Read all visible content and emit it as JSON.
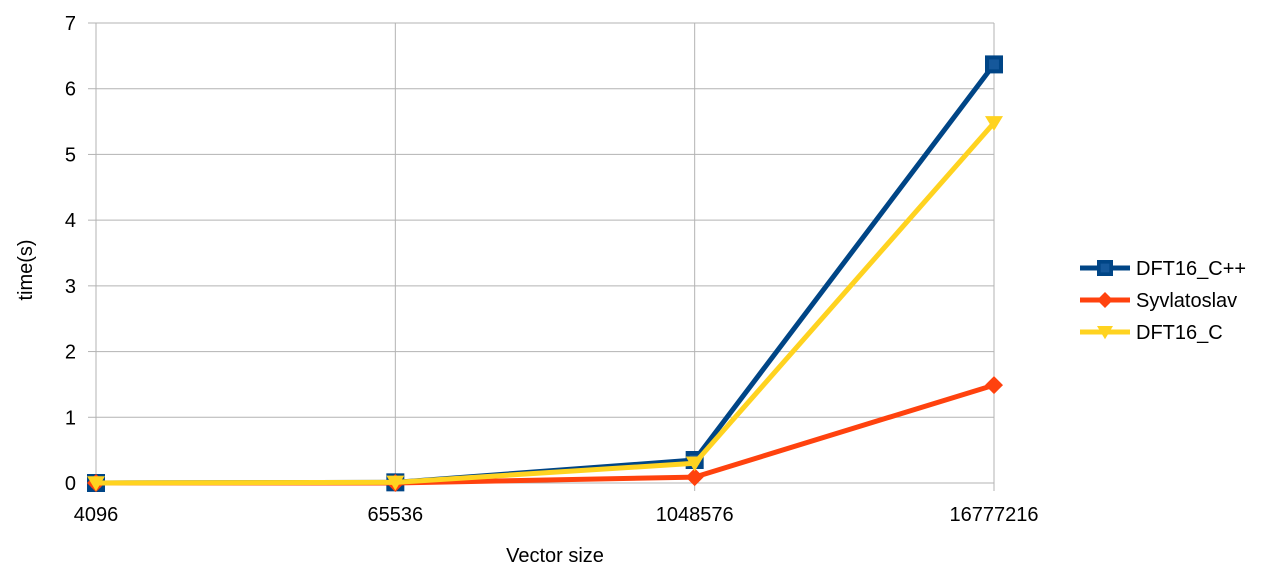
{
  "chart_data": {
    "type": "line",
    "title": "",
    "xlabel": "Vector size",
    "ylabel": "time(s)",
    "categories": [
      "4096",
      "65536",
      "1048576",
      "16777216"
    ],
    "ylim": [
      0,
      7
    ],
    "yticks": [
      "0",
      "1",
      "2",
      "3",
      "4",
      "5",
      "6",
      "7"
    ],
    "grid": "horizontal",
    "legend_position": "right",
    "series": [
      {
        "name": "DFT16_C++",
        "marker": "square",
        "color": "#004586",
        "values": [
          0.0,
          0.01,
          0.35,
          6.37
        ]
      },
      {
        "name": "Syvlatoslav",
        "marker": "diamond",
        "color": "#ff420e",
        "values": [
          0.0,
          0.0,
          0.09,
          1.49
        ]
      },
      {
        "name": "DFT16_C",
        "marker": "triangle-down",
        "color": "#ffd320",
        "values": [
          0.0,
          0.01,
          0.3,
          5.48
        ]
      }
    ]
  }
}
